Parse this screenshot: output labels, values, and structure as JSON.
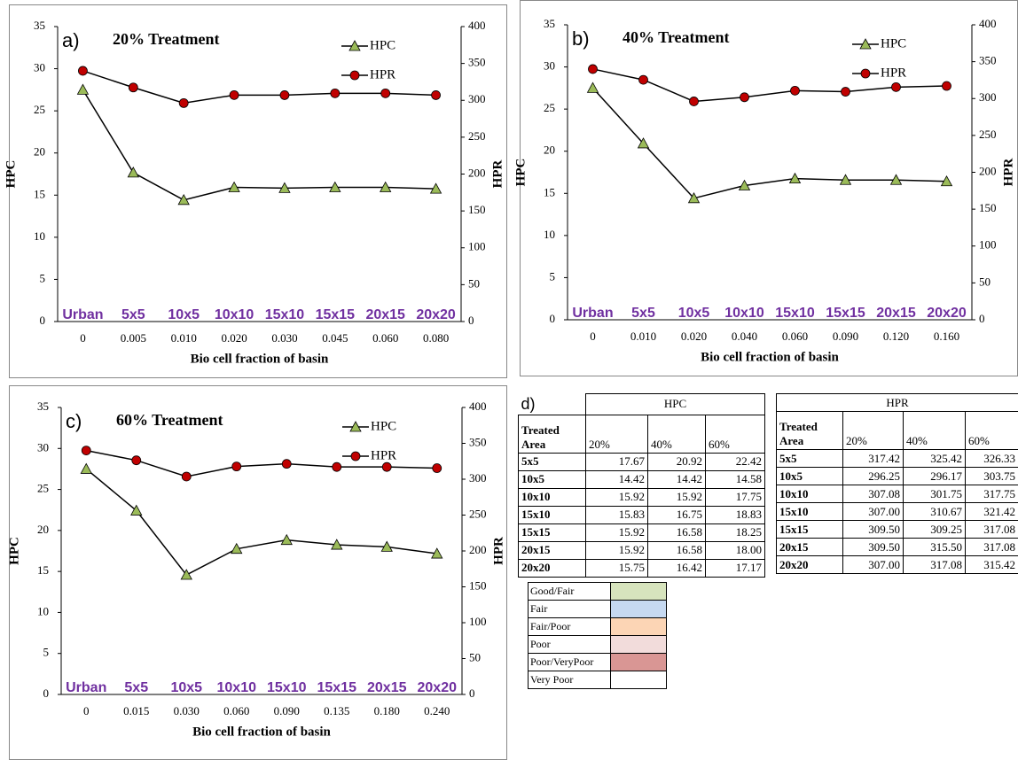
{
  "chart_data": [
    {
      "type": "line",
      "panel_label": "a)",
      "title": "20% Treatment",
      "x_label": "Bio cell fraction of basin",
      "y_label": "HPC",
      "y2_label": "HPR",
      "categories": [
        "0",
        "0.005",
        "0.010",
        "0.020",
        "0.030",
        "0.045",
        "0.060",
        "0.080"
      ],
      "area_labels": [
        "Urban",
        "5x5",
        "10x5",
        "10x10",
        "15x10",
        "15x15",
        "20x15",
        "20x20"
      ],
      "ylim": [
        0,
        35
      ],
      "yticks": [
        0,
        5,
        10,
        15,
        20,
        25,
        30,
        35
      ],
      "y2lim": [
        0,
        400
      ],
      "y2ticks": [
        0,
        50,
        100,
        150,
        200,
        250,
        300,
        350,
        400
      ],
      "series": [
        {
          "name": "HPC",
          "color": "#9bbb59",
          "line_color": "#000000",
          "marker": "triangle",
          "values": [
            27.5,
            17.67,
            14.42,
            15.92,
            15.83,
            15.92,
            15.92,
            15.75
          ]
        },
        {
          "name": "HPR",
          "color": "#c00000",
          "line_color": "#000000",
          "marker": "circle",
          "axis": "y2",
          "values": [
            340,
            317.42,
            296.25,
            307.08,
            307.0,
            309.5,
            309.5,
            307.0
          ]
        }
      ]
    },
    {
      "type": "line",
      "panel_label": "b)",
      "title": "40% Treatment",
      "x_label": "Bio cell fraction of basin",
      "y_label": "HPC",
      "y2_label": "HPR",
      "categories": [
        "0",
        "0.010",
        "0.020",
        "0.040",
        "0.060",
        "0.090",
        "0.120",
        "0.160"
      ],
      "area_labels": [
        "Urban",
        "5x5",
        "10x5",
        "10x10",
        "15x10",
        "15x15",
        "20x15",
        "20x20"
      ],
      "ylim": [
        0,
        35
      ],
      "yticks": [
        0,
        5,
        10,
        15,
        20,
        25,
        30,
        35
      ],
      "y2lim": [
        0,
        400
      ],
      "y2ticks": [
        0,
        50,
        100,
        150,
        200,
        250,
        300,
        350,
        400
      ],
      "series": [
        {
          "name": "HPC",
          "color": "#9bbb59",
          "line_color": "#000000",
          "marker": "triangle",
          "values": [
            27.5,
            20.92,
            14.42,
            15.92,
            16.75,
            16.58,
            16.58,
            16.42
          ]
        },
        {
          "name": "HPR",
          "color": "#c00000",
          "line_color": "#000000",
          "marker": "circle",
          "axis": "y2",
          "values": [
            340,
            325.42,
            296.17,
            301.75,
            310.67,
            309.25,
            315.5,
            317.08
          ]
        }
      ]
    },
    {
      "type": "line",
      "panel_label": "c)",
      "title": "60% Treatment",
      "x_label": "Bio cell fraction of basin",
      "y_label": "HPC",
      "y2_label": "HPR",
      "categories": [
        "0",
        "0.015",
        "0.030",
        "0.060",
        "0.090",
        "0.135",
        "0.180",
        "0.240"
      ],
      "area_labels": [
        "Urban",
        "5x5",
        "10x5",
        "10x10",
        "15x10",
        "15x15",
        "20x15",
        "20x20"
      ],
      "ylim": [
        0,
        35
      ],
      "yticks": [
        0,
        5,
        10,
        15,
        20,
        25,
        30,
        35
      ],
      "y2lim": [
        0,
        400
      ],
      "y2ticks": [
        0,
        50,
        100,
        150,
        200,
        250,
        300,
        350,
        400
      ],
      "series": [
        {
          "name": "HPC",
          "color": "#9bbb59",
          "line_color": "#000000",
          "marker": "triangle",
          "values": [
            27.5,
            22.42,
            14.58,
            17.75,
            18.83,
            18.25,
            18.0,
            17.17
          ]
        },
        {
          "name": "HPR",
          "color": "#c00000",
          "line_color": "#000000",
          "marker": "circle",
          "axis": "y2",
          "values": [
            340,
            326.33,
            303.75,
            317.75,
            321.42,
            317.08,
            317.08,
            315.42
          ]
        }
      ]
    }
  ],
  "tables": [
    {
      "label": "d)",
      "title": "HPC",
      "header": [
        "Treated Area",
        "20%",
        "40%",
        "60%"
      ],
      "rows": [
        [
          "5x5",
          "17.67",
          "20.92",
          "22.42"
        ],
        [
          "10x5",
          "14.42",
          "14.42",
          "14.58"
        ],
        [
          "10x10",
          "15.92",
          "15.92",
          "17.75"
        ],
        [
          "15x10",
          "15.83",
          "16.75",
          "18.83"
        ],
        [
          "15x15",
          "15.92",
          "16.58",
          "18.25"
        ],
        [
          "20x15",
          "15.92",
          "16.58",
          "18.00"
        ],
        [
          "20x20",
          "15.75",
          "16.42",
          "17.17"
        ]
      ]
    },
    {
      "title": "HPR",
      "header": [
        "Treated Area",
        "20%",
        "40%",
        "60%"
      ],
      "rows": [
        [
          "5x5",
          "317.42",
          "325.42",
          "326.33"
        ],
        [
          "10x5",
          "296.25",
          "296.17",
          "303.75"
        ],
        [
          "10x10",
          "307.08",
          "301.75",
          "317.75"
        ],
        [
          "15x10",
          "307.00",
          "310.67",
          "321.42"
        ],
        [
          "15x15",
          "309.50",
          "309.25",
          "317.08"
        ],
        [
          "20x15",
          "309.50",
          "315.50",
          "317.08"
        ],
        [
          "20x20",
          "307.00",
          "317.08",
          "315.42"
        ]
      ]
    }
  ],
  "condition_legend": [
    {
      "label": "Good/Fair",
      "color": "#d7e4bd"
    },
    {
      "label": "Fair",
      "color": "#c6d9f1"
    },
    {
      "label": "Fair/Poor",
      "color": "#fcd5b5"
    },
    {
      "label": "Poor",
      "color": "#f2dcdb"
    },
    {
      "label": "Poor/VeryPoor",
      "color": "#d99694"
    },
    {
      "label": "Very Poor",
      "color": "#ffffff"
    }
  ]
}
